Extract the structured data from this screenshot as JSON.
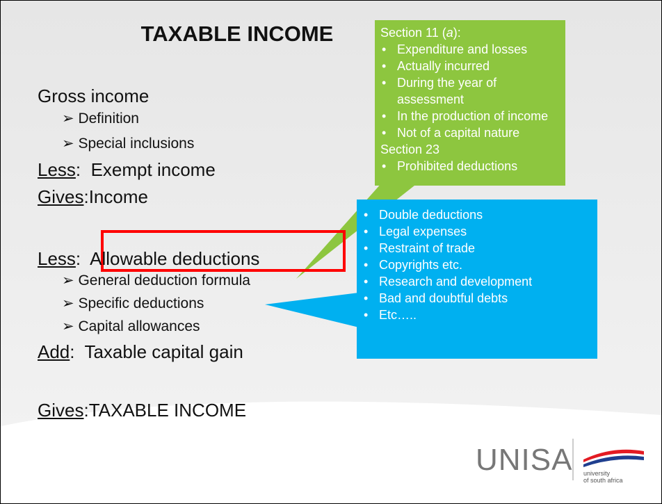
{
  "title": "TAXABLE INCOME",
  "lines": [
    {
      "level": 1,
      "lead": null,
      "text": "Gross income"
    },
    {
      "level": 2,
      "lead": null,
      "text": "Definition"
    },
    {
      "level": 2,
      "lead": null,
      "text": "Special inclusions"
    },
    {
      "level": 1,
      "lead": "Less",
      "text": ":  Exempt income"
    },
    {
      "level": 1,
      "lead": "Gives",
      "text": ":Income"
    },
    {
      "level": 1,
      "lead": "Less",
      "text": ":  Allowable deductions"
    },
    {
      "level": 2,
      "lead": null,
      "text": "General deduction formula"
    },
    {
      "level": 2,
      "lead": null,
      "text": "Specific deductions"
    },
    {
      "level": 2,
      "lead": null,
      "text": "Capital allowances"
    },
    {
      "level": 1,
      "lead": "Add",
      "text": ":  Taxable capital gain"
    },
    {
      "level": 1,
      "lead": "Gives",
      "text": ":TAXABLE INCOME"
    }
  ],
  "green_callout": {
    "heading1": [
      "Section 11 (",
      "a",
      "):"
    ],
    "bullets1": [
      "Expenditure and losses",
      "Actually incurred",
      "During the year of assessment",
      "In the production of income",
      "Not of a capital nature"
    ],
    "heading2": "Section 23",
    "bullets2": [
      "Prohibited deductions"
    ]
  },
  "blue_callout": {
    "bullets": [
      "Double deductions",
      "Legal expenses",
      "Restraint of trade",
      "Copyrights etc.",
      "Research and development",
      "Bad and doubtful debts",
      "Etc….."
    ]
  },
  "logo": {
    "name": "UNISA",
    "subtitle": "university\nof south africa"
  }
}
